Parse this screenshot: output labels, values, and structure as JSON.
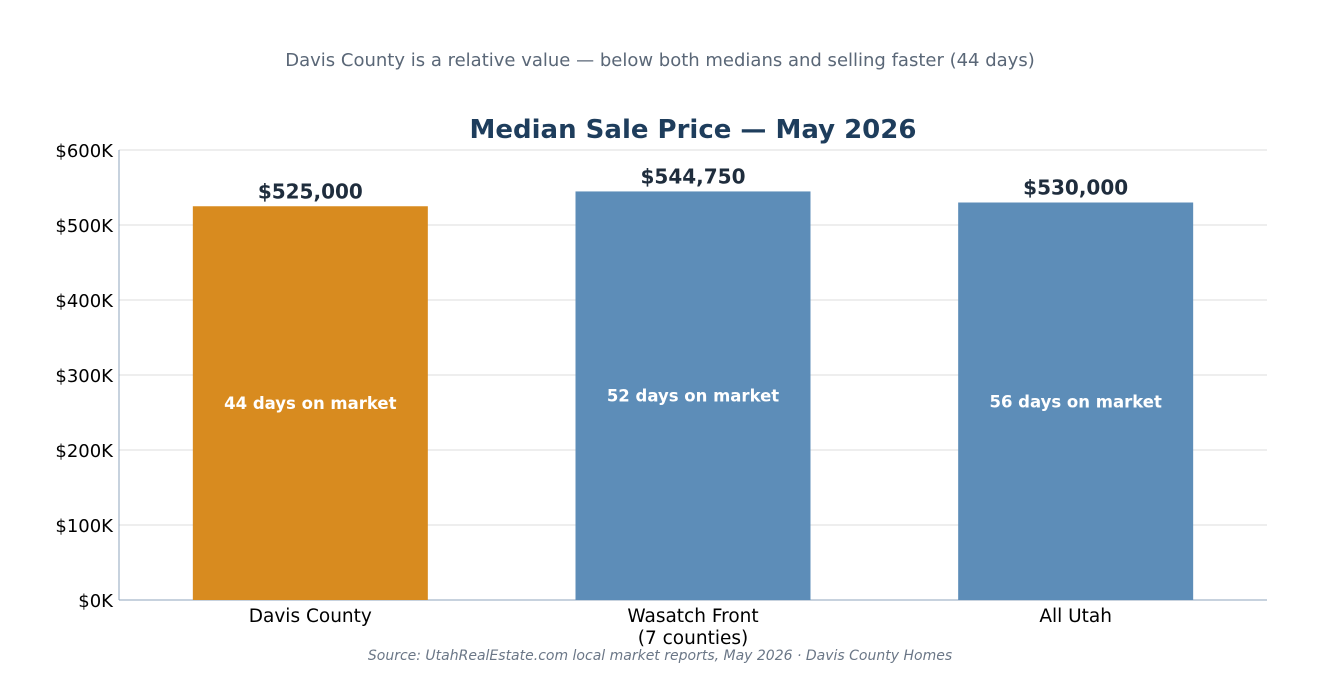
{
  "subtitle": "Davis County is a relative value — below both medians and selling faster (44 days)",
  "source": "Source: UtahRealEstate.com local market reports, May 2026  ·  Davis County Homes",
  "chart_data": {
    "type": "bar",
    "title": "Median Sale Price — May 2026",
    "xlabel": "",
    "ylabel": "",
    "ylim": [
      0,
      600000
    ],
    "grid": true,
    "legend": "none",
    "y_ticks": [
      0,
      100000,
      200000,
      300000,
      400000,
      500000,
      600000
    ],
    "y_tick_labels": [
      "$0K",
      "$100K",
      "$200K",
      "$300K",
      "$400K",
      "$500K",
      "$600K"
    ],
    "categories": [
      [
        "Davis County"
      ],
      [
        "Wasatch Front",
        "(7 counties)"
      ],
      [
        "All Utah"
      ]
    ],
    "values": [
      525000,
      544750,
      530000
    ],
    "value_labels": [
      "$525,000",
      "$544,750",
      "$530,000"
    ],
    "inner_labels": [
      "44 days on market",
      "52 days on market",
      "56 days on market"
    ],
    "colors": [
      "#d88b1f",
      "#5d8db8",
      "#5d8db8"
    ]
  }
}
